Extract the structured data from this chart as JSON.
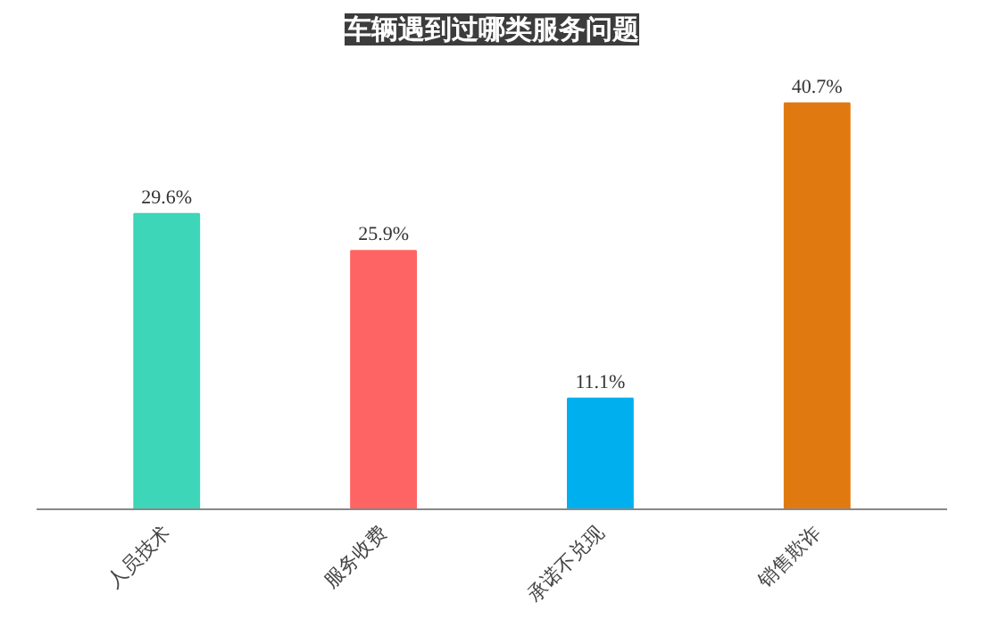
{
  "chart_data": {
    "type": "bar",
    "title": "车辆遇到过哪类服务问题",
    "categories": [
      "人员技术",
      "服务收费",
      "承诺不兑现",
      "销售欺诈"
    ],
    "values": [
      29.6,
      25.9,
      11.1,
      40.7
    ],
    "colors": [
      "#3dd6b9",
      "#fe6464",
      "#00b0ee",
      "#e07a10"
    ],
    "value_labels": [
      "29.6%",
      "25.9%",
      "11.1%",
      "40.7%"
    ],
    "grid": false
  }
}
